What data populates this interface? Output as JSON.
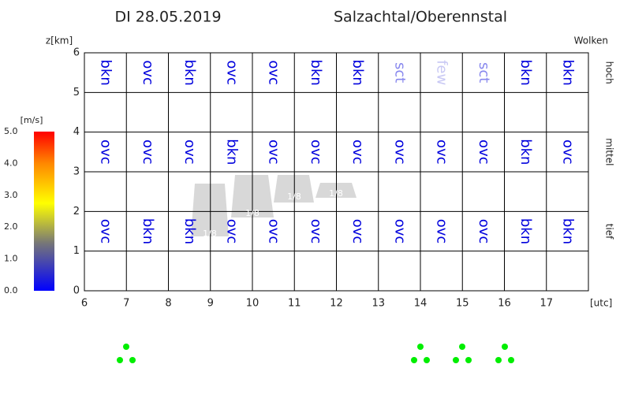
{
  "header": {
    "date": "DI 28.05.2019",
    "location": "Salzachtal/Oberennstal"
  },
  "axis": {
    "y_label": "z[km]",
    "y_ticks": [
      0,
      1,
      2,
      3,
      4,
      5,
      6
    ],
    "x_ticks": [
      6,
      7,
      8,
      9,
      10,
      11,
      12,
      13,
      14,
      15,
      16,
      17
    ],
    "x_unit": "[utc]",
    "right_label": "Wolken"
  },
  "levels": [
    {
      "name": "hoch",
      "codes": [
        "bkn",
        "ovc",
        "bkn",
        "ovc",
        "ovc",
        "bkn",
        "bkn",
        "sct",
        "few",
        "sct",
        "bkn",
        "bkn"
      ]
    },
    {
      "name": "mittel",
      "codes": [
        "ovc",
        "ovc",
        "ovc",
        "bkn",
        "ovc",
        "ovc",
        "ovc",
        "ovc",
        "ovc",
        "ovc",
        "bkn",
        "ovc"
      ]
    },
    {
      "name": "tief",
      "codes": [
        "ovc",
        "bkn",
        "bkn",
        "ovc",
        "ovc",
        "ovc",
        "ovc",
        "ovc",
        "ovc",
        "ovc",
        "bkn",
        "bkn"
      ]
    }
  ],
  "code_colors": {
    "bkn": "#0000dd",
    "ovc": "#0000dd",
    "sct": "#8888ee",
    "few": "#c8c8f4"
  },
  "cloud_patches": [
    "1/8",
    "1/8",
    "1/8",
    "1/8"
  ],
  "legend": {
    "unit": "[m/s]",
    "ticks": [
      "0.0",
      "1.0",
      "2.0",
      "3.0",
      "4.0",
      "5.0"
    ]
  }
}
